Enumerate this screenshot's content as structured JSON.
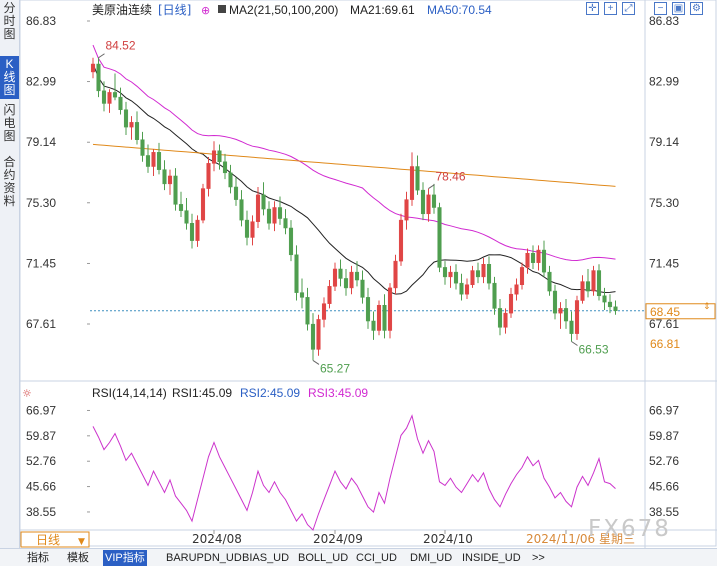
{
  "window": {
    "left_tabs": [
      "分时图",
      "K线图",
      "闪电图",
      "合约资料"
    ],
    "active_left_tab": "K线图",
    "period_button": "日线",
    "watermark": "FX678",
    "bottom_tabs": [
      "指标",
      "模板",
      "VIP指标",
      "BARUPDN_UD",
      "BIAS_UD",
      "BOLL_UD",
      "CCI_UD",
      "DMI_UD",
      "INSIDE_UD",
      ">>"
    ],
    "active_bottom_tab": "VIP指标",
    "tool_icons": [
      "crosshair-icon",
      "zoom-in-icon",
      "expand-icon",
      "zoom-out-icon",
      "fit-icon",
      "settings-icon"
    ]
  },
  "colors": {
    "up": "#e04545",
    "down": "#4f9e4f",
    "ma21": "#222222",
    "ma50": "#d12ad1",
    "ma100": "#e0891a",
    "rsi": "#cc33cc",
    "price_line": "#3f8fbf",
    "accent": "#2b5fc4"
  },
  "chart_data": [
    {
      "type": "candlestick",
      "title": "美原油连续",
      "period": "日线",
      "indicator_label": "MA2(21,50,100,200)",
      "ma_labels": [
        {
          "name": "MA21",
          "value": "69.61"
        },
        {
          "name": "MA50",
          "value": "70.54"
        }
      ],
      "y_ticks": [
        "86.83",
        "82.99",
        "79.14",
        "75.30",
        "71.45",
        "67.61"
      ],
      "ylim": [
        65.2,
        86.83
      ],
      "x_ticks": [
        "2024/08",
        "2024/09",
        "2024/10",
        "2024/11/06 星期三"
      ],
      "current_price": "68.45",
      "current_price_alt": "66.81",
      "annotations": [
        {
          "label": "84.52",
          "kind": "high"
        },
        {
          "label": "78.46",
          "kind": "high"
        },
        {
          "label": "65.27",
          "kind": "low"
        },
        {
          "label": "66.53",
          "kind": "low"
        }
      ],
      "candles": [
        [
          83.6,
          84.5,
          83.2,
          84.1
        ],
        [
          84.1,
          84.5,
          82.0,
          82.4
        ],
        [
          82.4,
          83.0,
          81.1,
          81.6
        ],
        [
          81.6,
          82.5,
          81.0,
          82.3
        ],
        [
          82.3,
          83.5,
          81.8,
          82.0
        ],
        [
          82.0,
          82.6,
          80.9,
          81.2
        ],
        [
          81.2,
          81.7,
          79.6,
          80.1
        ],
        [
          80.1,
          80.8,
          79.3,
          80.4
        ],
        [
          80.4,
          81.1,
          79.0,
          79.3
        ],
        [
          79.3,
          79.8,
          77.9,
          78.3
        ],
        [
          78.3,
          79.0,
          77.2,
          77.6
        ],
        [
          77.6,
          78.7,
          77.0,
          78.5
        ],
        [
          78.5,
          79.1,
          77.1,
          77.4
        ],
        [
          77.4,
          78.0,
          76.1,
          76.5
        ],
        [
          76.5,
          77.4,
          75.8,
          77.0
        ],
        [
          77.0,
          77.5,
          74.8,
          75.2
        ],
        [
          75.2,
          76.0,
          74.4,
          74.8
        ],
        [
          74.8,
          75.6,
          73.6,
          74.0
        ],
        [
          74.0,
          74.6,
          72.4,
          72.9
        ],
        [
          72.9,
          74.5,
          72.5,
          74.2
        ],
        [
          74.2,
          76.5,
          74.0,
          76.2
        ],
        [
          76.2,
          78.2,
          75.7,
          77.8
        ],
        [
          77.8,
          79.2,
          77.3,
          78.6
        ],
        [
          78.6,
          79.0,
          77.4,
          77.9
        ],
        [
          77.9,
          78.4,
          76.8,
          77.2
        ],
        [
          77.2,
          77.7,
          75.9,
          76.3
        ],
        [
          76.3,
          76.9,
          75.1,
          75.5
        ],
        [
          75.5,
          76.1,
          73.8,
          74.2
        ],
        [
          74.2,
          74.8,
          72.6,
          73.1
        ],
        [
          73.1,
          74.5,
          72.6,
          74.1
        ],
        [
          74.1,
          76.3,
          73.7,
          75.8
        ],
        [
          75.8,
          76.6,
          74.5,
          74.9
        ],
        [
          74.9,
          75.4,
          73.6,
          74.0
        ],
        [
          74.0,
          75.4,
          73.5,
          75.0
        ],
        [
          75.0,
          75.7,
          73.9,
          74.3
        ],
        [
          74.3,
          74.9,
          73.3,
          73.7
        ],
        [
          73.7,
          74.2,
          71.6,
          72.0
        ],
        [
          72.0,
          72.6,
          69.1,
          69.6
        ],
        [
          69.6,
          70.5,
          68.6,
          69.3
        ],
        [
          69.3,
          69.9,
          67.2,
          67.6
        ],
        [
          67.6,
          68.3,
          65.3,
          66.0
        ],
        [
          66.0,
          68.2,
          65.6,
          67.9
        ],
        [
          67.9,
          69.3,
          67.4,
          68.9
        ],
        [
          68.9,
          70.4,
          68.6,
          70.0
        ],
        [
          70.0,
          71.5,
          69.7,
          71.1
        ],
        [
          71.1,
          71.7,
          70.0,
          70.5
        ],
        [
          70.5,
          71.1,
          69.4,
          69.9
        ],
        [
          69.9,
          71.3,
          69.5,
          70.9
        ],
        [
          70.9,
          71.6,
          70.0,
          70.4
        ],
        [
          70.4,
          71.0,
          68.9,
          69.3
        ],
        [
          69.3,
          69.9,
          67.3,
          67.8
        ],
        [
          67.8,
          68.4,
          66.6,
          67.2
        ],
        [
          67.2,
          69.1,
          66.9,
          68.8
        ],
        [
          68.8,
          69.5,
          66.7,
          67.2
        ],
        [
          67.2,
          70.2,
          66.7,
          69.9
        ],
        [
          69.9,
          72.0,
          69.5,
          71.6
        ],
        [
          71.6,
          74.6,
          71.3,
          74.2
        ],
        [
          74.2,
          76.0,
          73.6,
          75.5
        ],
        [
          75.5,
          78.5,
          75.1,
          77.6
        ],
        [
          77.6,
          78.3,
          75.8,
          76.1
        ],
        [
          76.1,
          76.6,
          74.2,
          74.6
        ],
        [
          74.6,
          76.2,
          74.1,
          75.8
        ],
        [
          75.8,
          76.5,
          74.6,
          75.0
        ],
        [
          75.0,
          75.3,
          70.9,
          71.2
        ],
        [
          71.2,
          71.6,
          70.1,
          70.6
        ],
        [
          70.6,
          71.3,
          69.9,
          70.9
        ],
        [
          70.9,
          71.4,
          69.8,
          70.2
        ],
        [
          70.2,
          70.8,
          69.1,
          69.5
        ],
        [
          69.5,
          70.5,
          69.2,
          70.1
        ],
        [
          70.1,
          71.3,
          69.9,
          71.0
        ],
        [
          71.0,
          71.5,
          70.2,
          70.6
        ],
        [
          70.6,
          71.8,
          70.2,
          71.4
        ],
        [
          71.4,
          71.9,
          69.8,
          70.2
        ],
        [
          70.2,
          70.6,
          68.2,
          68.6
        ],
        [
          68.6,
          69.2,
          66.9,
          67.4
        ],
        [
          67.4,
          68.6,
          67.0,
          68.3
        ],
        [
          68.3,
          69.9,
          68.0,
          69.5
        ],
        [
          69.5,
          70.5,
          69.1,
          70.1
        ],
        [
          70.1,
          71.5,
          69.8,
          71.2
        ],
        [
          71.2,
          72.4,
          70.8,
          72.1
        ],
        [
          72.1,
          72.6,
          71.1,
          71.5
        ],
        [
          71.5,
          72.6,
          71.0,
          72.3
        ],
        [
          72.3,
          72.9,
          70.6,
          70.9
        ],
        [
          70.9,
          71.3,
          69.4,
          69.7
        ],
        [
          69.7,
          70.1,
          67.9,
          68.3
        ],
        [
          68.3,
          69.0,
          67.3,
          68.6
        ],
        [
          68.6,
          69.2,
          67.3,
          67.8
        ],
        [
          67.8,
          68.4,
          66.5,
          67.0
        ],
        [
          67.0,
          69.4,
          66.6,
          69.1
        ],
        [
          69.1,
          70.7,
          68.9,
          70.3
        ],
        [
          70.3,
          71.1,
          69.3,
          69.7
        ],
        [
          69.7,
          71.3,
          69.4,
          71.0
        ],
        [
          71.0,
          71.4,
          69.1,
          69.4
        ],
        [
          69.4,
          69.9,
          68.5,
          69.0
        ],
        [
          69.0,
          69.5,
          68.3,
          68.7
        ],
        [
          68.7,
          69.1,
          68.2,
          68.45
        ]
      ]
    },
    {
      "type": "line",
      "title": "RSI(14,14,14)",
      "series_labels": [
        {
          "name": "RSI1",
          "value": "45.09"
        },
        {
          "name": "RSI2",
          "value": "45.09"
        },
        {
          "name": "RSI3",
          "value": "45.09"
        }
      ],
      "y_ticks": [
        "66.97",
        "59.87",
        "52.76",
        "45.66",
        "38.55"
      ],
      "ylim": [
        33.5,
        68.5
      ],
      "values": [
        62.5,
        59.5,
        56,
        58,
        60.5,
        57,
        53,
        55,
        52,
        49,
        46,
        50,
        47,
        44,
        47.5,
        43,
        41,
        39,
        36,
        42,
        48,
        54,
        58,
        54,
        51,
        48,
        45,
        42,
        39,
        44,
        50,
        46,
        44,
        47,
        44,
        42,
        39,
        36,
        38,
        35,
        33.5,
        38,
        42,
        46,
        50,
        47,
        45,
        48,
        46,
        43,
        40,
        38.5,
        44,
        41,
        48,
        54,
        60,
        62,
        65.5,
        59,
        55,
        58.5,
        55.5,
        47,
        46,
        48,
        45.5,
        44,
        46.5,
        49,
        47,
        49.5,
        45,
        42,
        40,
        43.5,
        46.5,
        49,
        51,
        54,
        51.5,
        53,
        48,
        45.5,
        42.5,
        44,
        41.5,
        40,
        45.5,
        48.5,
        46,
        49.5,
        53.5,
        47,
        46.5,
        45.09
      ]
    }
  ]
}
